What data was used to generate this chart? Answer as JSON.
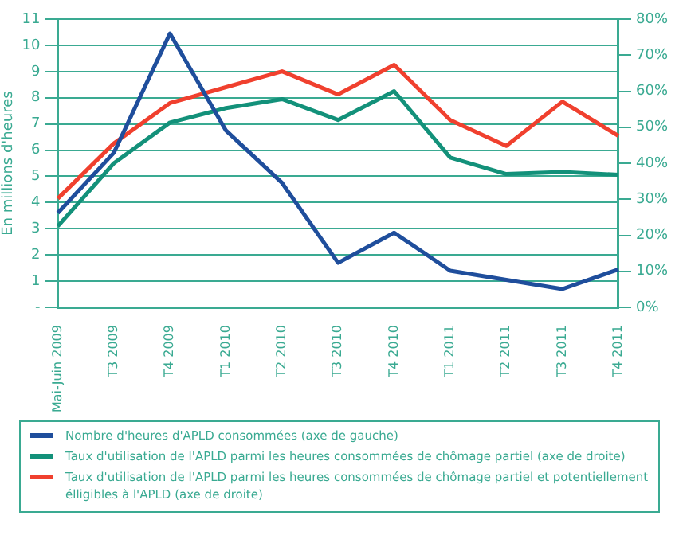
{
  "chart_data": {
    "type": "line",
    "ylabel": "En millions d'heures",
    "categories": [
      "Mai-Juin 2009",
      "T3 2009",
      "T4 2009",
      "T1 2010",
      "T2 2010",
      "T3 2010",
      "T4 2010",
      "T1 2011",
      "T2 2011",
      "T3 2011",
      "T4 2011"
    ],
    "series": [
      {
        "name": "Nombre d'heures d'APLD consommées (axe de gauche)",
        "color": "#1f4e9c",
        "values": [
          3.6,
          5.9,
          10.45,
          6.75,
          4.75,
          1.7,
          2.85,
          1.4,
          1.05,
          0.7,
          1.45
        ]
      },
      {
        "name": "Taux d'utilisation de l'APLD parmi les heures consommées de chômage partiel (axe de droite)",
        "color": "#13917a",
        "axis": "y2",
        "values": [
          22.5,
          40,
          51.3,
          55.3,
          57.8,
          52,
          60,
          41.6,
          37,
          37.6,
          36.8
        ]
      },
      {
        "name": "Taux d'utilisation de l'APLD parmi les heures consommées de chômage partiel et potentiellement élligibles à l'APLD (axe de droite)",
        "color": "#f0402e",
        "axis": "y2",
        "values": [
          30.2,
          45.5,
          56.7,
          61.1,
          65.5,
          59.1,
          67.3,
          52,
          44.8,
          57.1,
          47.6
        ]
      }
    ],
    "ylim": [
      0,
      11
    ],
    "yticks": [
      {
        "value": 0,
        "label": "-"
      },
      1,
      2,
      3,
      4,
      5,
      6,
      7,
      8,
      9,
      10,
      11
    ],
    "y2lim": [
      0,
      80
    ],
    "y2ticks": [
      {
        "value": 0,
        "label": "0%"
      },
      {
        "value": 10,
        "label": "10%"
      },
      {
        "value": 20,
        "label": "20%"
      },
      {
        "value": 30,
        "label": "30%"
      },
      {
        "value": 40,
        "label": "40%"
      },
      {
        "value": 50,
        "label": "50%"
      },
      {
        "value": 60,
        "label": "60%"
      },
      {
        "value": 70,
        "label": "70%"
      },
      {
        "value": 80,
        "label": "80%"
      }
    ],
    "grid": "y",
    "legend": "bottom",
    "marker": "none",
    "line_style": "solid"
  }
}
